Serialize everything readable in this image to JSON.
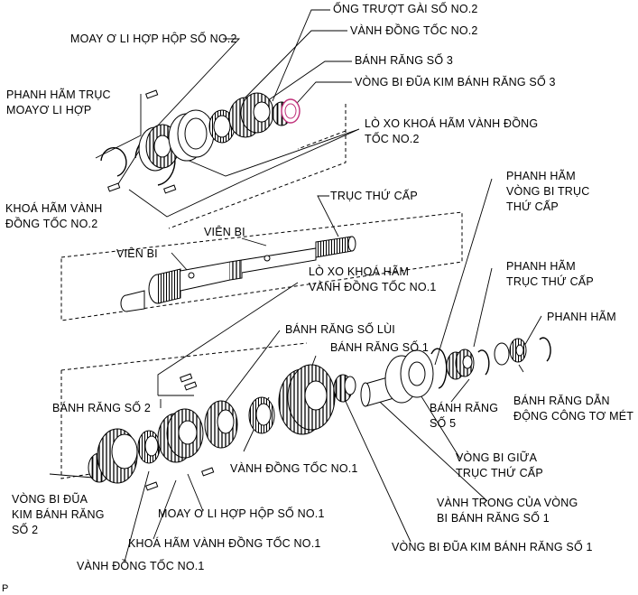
{
  "labels": {
    "ong_truot_no2": "ỐNG TRƯỢT GÀI SỐ NO.2",
    "moay_o_no2": "MOAY Ơ LI HỢP HỘP SỐ NO.2",
    "vanh_dong_toc_no2": "VÀNH ĐỒNG TỐC NO.2",
    "banh_rang_so3": "BÁNH RĂNG SỐ 3",
    "vong_bi_kim_so3": "VÒNG BI ĐŨA KIM BÁNH RĂNG SỐ 3",
    "phanh_ham_moay_o_1": "PHANH HÃM TRỤC",
    "phanh_ham_moay_o_2": "MOAYƠ LI HỢP",
    "lo_xo_no2_1": "LÒ XO KHOÁ HÃM VÀNH ĐỒNG",
    "lo_xo_no2_2": "TỐC NO.2",
    "khoa_ham_no2_1": "KHOÁ HÃM VÀNH",
    "khoa_ham_no2_2": "ĐỒNG TỐC NO.2",
    "truc_thu_cap": "TRỤC THỨ CẤP",
    "vien_bi_1": "VIÊN BI",
    "vien_bi_2": "VIÊN BI",
    "phanh_ham_vong_bi_1": "PHANH HÃM",
    "phanh_ham_vong_bi_2": "VÒNG BI TRỤC",
    "phanh_ham_vong_bi_3": "THỨ CẤP",
    "lo_xo_no1_1": "LÒ XO KHOÁ HÃM",
    "lo_xo_no1_2": "VÀNH ĐỒNG TỐC NO.1",
    "phanh_ham_truc_1": "PHANH HÃM",
    "phanh_ham_truc_2": "TRỤC THỨ CẤP",
    "phanh_ham": "PHANH HÃM",
    "banh_rang_lui": "BÁNH RĂNG SỐ LÙI",
    "banh_rang_so1": "BÁNH RĂNG SỐ 1",
    "banh_rang_so2": "BÁNH RĂNG SỐ 2",
    "banh_rang_so5_1": "BÁNH RĂNG",
    "banh_rang_so5_2": "SỐ 5",
    "banh_rang_dan_1": "BÁNH RĂNG DẪN",
    "banh_rang_dan_2": "ĐỘNG CÔNG TƠ MÉT",
    "vanh_dong_toc_no1_a": "VÀNH ĐỒNG TỐC NO.1",
    "vong_bi_giua_1": "VÒNG BI GIỮA",
    "vong_bi_giua_2": "TRỤC THỨ CẤP",
    "vong_bi_kim_so2_1": "VÒNG BI ĐŨA",
    "vong_bi_kim_so2_2": "KIM BÁNH RĂNG",
    "vong_bi_kim_so2_3": "SỐ 2",
    "vanh_trong_1": "VÀNH TRONG CỦA VÒNG",
    "vanh_trong_2": "BI BÁNH RĂNG SỐ 1",
    "moay_o_no1": "MOAY Ơ LI HỢP HỘP SỐ NO.1",
    "khoa_ham_no1": "KHOÁ HÃM VÀNH ĐỒNG TỐC NO.1",
    "vong_bi_kim_so1": "VÒNG BI ĐŨA KIM BÁNH RĂNG SỐ 1",
    "vanh_dong_toc_no1_b": "VÀNH ĐỒNG TỐC NO.1",
    "corner_mark": "P"
  },
  "colors": {
    "ink": "#000000",
    "highlight": "#c0307a"
  }
}
